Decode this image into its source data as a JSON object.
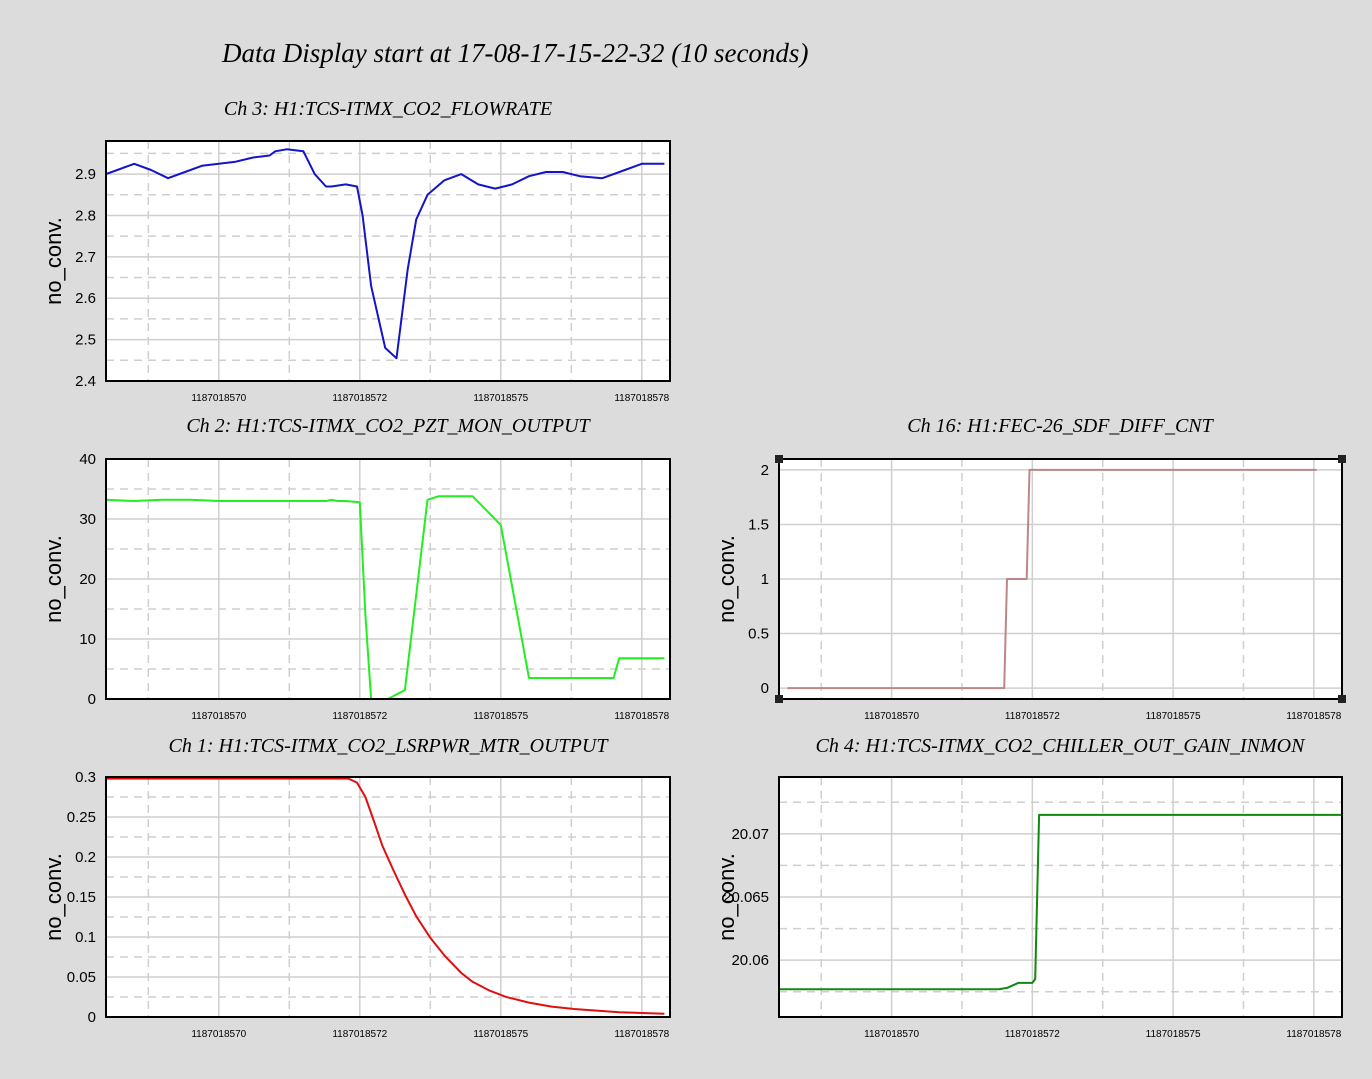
{
  "title": "Data Display start at 17-08-17-15-22-32 (10 seconds)",
  "chart_data": [
    {
      "id": "ch3",
      "type": "line",
      "title": "Ch 3: H1:TCS-ITMX_CO2_FLOWRATE",
      "ylabel": "no_conv.",
      "color": "#1414c8",
      "xlim": [
        1187018568.5,
        1187018578.5
      ],
      "ylim": [
        2.4,
        2.98
      ],
      "yticks": [
        2.4,
        2.5,
        2.6,
        2.7,
        2.8,
        2.9
      ],
      "yminor": [
        2.45,
        2.55,
        2.65,
        2.75,
        2.85,
        2.95
      ],
      "xtick_labels": [
        "1187018570",
        "1187018572",
        "1187018575",
        "1187018578"
      ],
      "step": false,
      "x": [
        1187018568.5,
        1187018568.7,
        1187018569.0,
        1187018569.3,
        1187018569.6,
        1187018569.9,
        1187018570.2,
        1187018570.5,
        1187018570.8,
        1187018571.1,
        1187018571.4,
        1187018571.5,
        1187018571.7,
        1187018572.0,
        1187018572.2,
        1187018572.4,
        1187018572.5,
        1187018572.75,
        1187018572.95,
        1187018573.05,
        1187018573.2,
        1187018573.45,
        1187018573.65,
        1187018573.85,
        1187018574.0,
        1187018574.2,
        1187018574.5,
        1187018574.8,
        1187018575.1,
        1187018575.4,
        1187018575.7,
        1187018576.0,
        1187018576.3,
        1187018576.6,
        1187018576.9,
        1187018577.3,
        1187018577.7,
        1187018578.0,
        1187018578.2,
        1187018578.4
      ],
      "y": [
        2.9,
        2.91,
        2.925,
        2.91,
        2.89,
        2.905,
        2.92,
        2.925,
        2.93,
        2.94,
        2.945,
        2.955,
        2.96,
        2.955,
        2.9,
        2.87,
        2.87,
        2.875,
        2.87,
        2.8,
        2.63,
        2.48,
        2.455,
        2.67,
        2.79,
        2.85,
        2.885,
        2.9,
        2.875,
        2.865,
        2.875,
        2.895,
        2.905,
        2.905,
        2.895,
        2.89,
        2.91,
        2.925,
        2.925,
        2.925
      ]
    },
    {
      "id": "ch2",
      "type": "line",
      "title": "Ch 2: H1:TCS-ITMX_CO2_PZT_MON_OUTPUT",
      "ylabel": "no_conv.",
      "color": "#22ee22",
      "xlim": [
        1187018568.5,
        1187018578.5
      ],
      "ylim": [
        0,
        40
      ],
      "yticks": [
        0,
        10,
        20,
        30,
        40
      ],
      "yminor": [
        5,
        15,
        25,
        35
      ],
      "xtick_labels": [
        "1187018570",
        "1187018572",
        "1187018575",
        "1187018578"
      ],
      "step": false,
      "x": [
        1187018568.5,
        1187018569.0,
        1187018569.5,
        1187018570.0,
        1187018570.5,
        1187018571.0,
        1187018571.5,
        1187018572.0,
        1187018572.4,
        1187018572.5,
        1187018572.6,
        1187018572.75,
        1187018573.0,
        1187018573.1,
        1187018573.2,
        1187018573.3,
        1187018573.5,
        1187018573.8,
        1187018574.2,
        1187018574.4,
        1187018574.6,
        1187018574.75,
        1187018575.0,
        1187018575.5,
        1187018576.0,
        1187018576.5,
        1187018577.0,
        1187018577.3,
        1187018577.5,
        1187018577.6,
        1187018577.7,
        1187018578.0,
        1187018578.4
      ],
      "y": [
        33.2,
        33.0,
        33.2,
        33.2,
        33.0,
        33.0,
        33.0,
        33.0,
        33.0,
        33.2,
        33.0,
        33.0,
        32.8,
        14.0,
        0,
        0,
        0,
        1.5,
        33.2,
        33.8,
        33.8,
        33.8,
        33.8,
        29.0,
        3.5,
        3.5,
        3.5,
        3.5,
        3.5,
        6.8,
        6.8,
        6.8,
        6.8
      ]
    },
    {
      "id": "ch16",
      "type": "line",
      "title": "Ch 16: H1:FEC-26_SDF_DIFF_CNT",
      "ylabel": "no_conv.",
      "color": "#bb8888",
      "xlim": [
        1187018568.5,
        1187018578.5
      ],
      "ylim": [
        -0.1,
        2.1
      ],
      "yticks": [
        0,
        0.5,
        1,
        1.5,
        2
      ],
      "yminor": [],
      "xtick_labels": [
        "1187018570",
        "1187018572",
        "1187018575",
        "1187018578"
      ],
      "step": false,
      "x": [
        1187018568.65,
        1187018572.5,
        1187018572.55,
        1187018572.9,
        1187018572.95,
        1187018578.05
      ],
      "y": [
        0,
        0,
        1,
        1,
        2,
        2
      ]
    },
    {
      "id": "ch1",
      "type": "line",
      "title": "Ch 1: H1:TCS-ITMX_CO2_LSRPWR_MTR_OUTPUT",
      "ylabel": "no_conv.",
      "color": "#e01010",
      "xlim": [
        1187018568.5,
        1187018578.5
      ],
      "ylim": [
        0,
        0.3
      ],
      "yticks": [
        0,
        0.05,
        0.1,
        0.15,
        0.2,
        0.25,
        0.3
      ],
      "yminor": [
        0.025,
        0.075,
        0.125,
        0.175,
        0.225,
        0.275
      ],
      "xtick_labels": [
        "1187018570",
        "1187018572",
        "1187018575",
        "1187018578"
      ],
      "step": false,
      "x": [
        1187018568.5,
        1187018570.0,
        1187018571.5,
        1187018572.3,
        1187018572.8,
        1187018572.95,
        1187018573.1,
        1187018573.25,
        1187018573.4,
        1187018573.6,
        1187018573.8,
        1187018574.0,
        1187018574.25,
        1187018574.5,
        1187018574.8,
        1187018575.0,
        1187018575.3,
        1187018575.6,
        1187018576.0,
        1187018576.4,
        1187018576.8,
        1187018577.2,
        1187018577.6,
        1187018578.0,
        1187018578.4
      ],
      "y": [
        0.298,
        0.298,
        0.298,
        0.298,
        0.298,
        0.293,
        0.275,
        0.245,
        0.214,
        0.183,
        0.153,
        0.126,
        0.099,
        0.077,
        0.055,
        0.044,
        0.033,
        0.025,
        0.018,
        0.013,
        0.01,
        0.008,
        0.006,
        0.005,
        0.004
      ]
    },
    {
      "id": "ch4",
      "type": "line",
      "title": "Ch 4: H1:TCS-ITMX_CO2_CHILLER_OUT_GAIN_INMON",
      "ylabel": "no_conv.",
      "color": "#118811",
      "xlim": [
        1187018568.5,
        1187018578.5
      ],
      "ylim": [
        20.0555,
        20.0745
      ],
      "yticks": [
        20.06,
        20.065,
        20.07
      ],
      "yminor": [
        20.0575,
        20.0625,
        20.0675,
        20.0725
      ],
      "xtick_labels": [
        "1187018570",
        "1187018572",
        "1187018575",
        "1187018578"
      ],
      "step": false,
      "x": [
        1187018568.5,
        1187018571.0,
        1187018572.4,
        1187018572.55,
        1187018572.75,
        1187018573.0,
        1187018573.05,
        1187018573.12,
        1187018573.5,
        1187018575.0,
        1187018578.5
      ],
      "y": [
        20.0577,
        20.0577,
        20.0577,
        20.0578,
        20.0582,
        20.0582,
        20.0585,
        20.0715,
        20.0715,
        20.0715,
        20.0715
      ]
    }
  ]
}
